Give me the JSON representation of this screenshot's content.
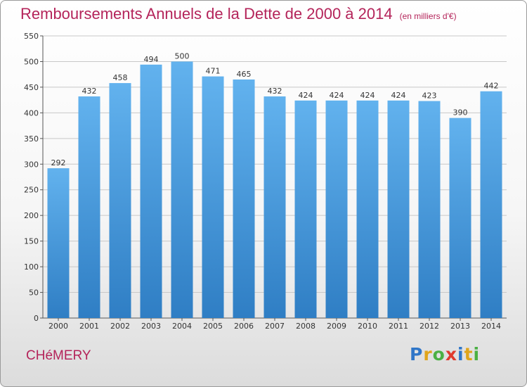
{
  "title": "Remboursements Annuels de la Dette de 2000 à 2014",
  "subtitle": "(en milliers d'€)",
  "commune": "CHéMERY",
  "logo": {
    "letters": [
      "P",
      "r",
      "o",
      "x",
      "i",
      "t",
      "i"
    ],
    "colors": [
      "#2f76c8",
      "#e0a51b",
      "#4bb043",
      "#e03a2d",
      "#2f76c8",
      "#e0a51b",
      "#4bb043"
    ]
  },
  "colors": {
    "bar_light": "#62b2ee",
    "bar_dark": "#2f7ec4",
    "grid": "#c8c8c8",
    "accent": "#b4245a"
  },
  "chart_data": {
    "type": "bar",
    "title": "Remboursements Annuels de la Dette de 2000 à 2014",
    "subtitle": "(en milliers d'€)",
    "categories": [
      "2000",
      "2001",
      "2002",
      "2003",
      "2004",
      "2005",
      "2006",
      "2007",
      "2008",
      "2009",
      "2010",
      "2011",
      "2012",
      "2013",
      "2014"
    ],
    "values": [
      292,
      432,
      458,
      494,
      500,
      471,
      465,
      432,
      424,
      424,
      424,
      424,
      423,
      390,
      442
    ],
    "ylim": [
      0,
      550
    ],
    "yticks": [
      0,
      50,
      100,
      150,
      200,
      250,
      300,
      350,
      400,
      450,
      500,
      550
    ],
    "grid": true
  }
}
